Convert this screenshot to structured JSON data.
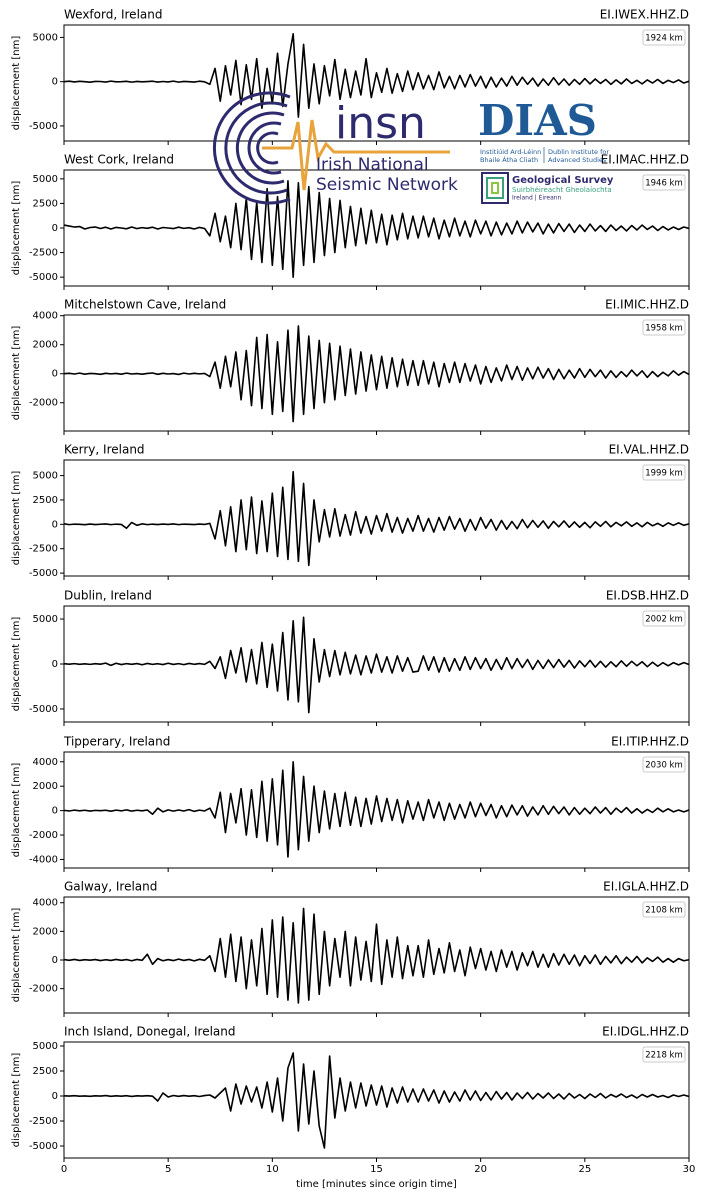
{
  "chart_data": {
    "type": "line",
    "xlabel": "time [minutes since origin time]",
    "ylabel": "displacement [nm]",
    "xlim": [
      0,
      30
    ],
    "xticks": [
      0,
      5,
      10,
      15,
      20,
      25,
      30
    ],
    "color": "#000000",
    "x": [
      0,
      0.25,
      0.5,
      0.75,
      1,
      1.25,
      1.5,
      1.75,
      2,
      2.25,
      2.5,
      2.75,
      3,
      3.25,
      3.5,
      3.75,
      4,
      4.25,
      4.5,
      4.75,
      5,
      5.25,
      5.5,
      5.75,
      6,
      6.25,
      6.5,
      6.75,
      7,
      7.25,
      7.5,
      7.75,
      8,
      8.25,
      8.5,
      8.75,
      9,
      9.25,
      9.5,
      9.75,
      10,
      10.25,
      10.5,
      10.75,
      11,
      11.25,
      11.5,
      11.75,
      12,
      12.25,
      12.5,
      12.75,
      13,
      13.25,
      13.5,
      13.75,
      14,
      14.25,
      14.5,
      14.75,
      15,
      15.25,
      15.5,
      15.75,
      16,
      16.25,
      16.5,
      16.75,
      17,
      17.25,
      17.5,
      17.75,
      18,
      18.25,
      18.5,
      18.75,
      19,
      19.25,
      19.5,
      19.75,
      20,
      20.25,
      20.5,
      20.75,
      21,
      21.25,
      21.5,
      21.75,
      22,
      22.25,
      22.5,
      22.75,
      23,
      23.25,
      23.5,
      23.75,
      24,
      24.25,
      24.5,
      24.75,
      25,
      25.25,
      25.5,
      25.75,
      26,
      26.25,
      26.5,
      26.75,
      27,
      27.25,
      27.5,
      27.75,
      28,
      28.25,
      28.5,
      28.75,
      29,
      29.25,
      29.5,
      29.75,
      30
    ],
    "panels": [
      {
        "title": "Wexford, Ireland",
        "station": "EI.IWEX.HHZ.D",
        "distance": "1924 km",
        "ylim": [
          -6700,
          6400
        ],
        "yticks": [
          -5000,
          0,
          5000
        ],
        "values": [
          0,
          50,
          -30,
          40,
          0,
          -60,
          30,
          20,
          -40,
          60,
          -20,
          0,
          40,
          -50,
          30,
          -20,
          10,
          50,
          -40,
          20,
          -30,
          60,
          -50,
          30,
          0,
          -40,
          50,
          -20,
          -300,
          1500,
          -2200,
          1800,
          -1500,
          2400,
          -2600,
          1900,
          -2000,
          2600,
          -3000,
          1500,
          -2500,
          3200,
          -2800,
          2000,
          5400,
          -4000,
          4200,
          -3000,
          2000,
          -2500,
          1800,
          -1600,
          2500,
          -2000,
          1400,
          -1800,
          1200,
          -1500,
          2600,
          -1800,
          1000,
          -1200,
          1500,
          -1300,
          900,
          -1100,
          1200,
          -900,
          1000,
          -800,
          700,
          -900,
          1100,
          -700,
          600,
          -800,
          700,
          -600,
          800,
          -500,
          600,
          -700,
          500,
          -600,
          400,
          -500,
          600,
          -400,
          500,
          -300,
          400,
          -500,
          300,
          -400,
          450,
          -350,
          300,
          -400,
          250,
          -300,
          350,
          -250,
          300,
          -200,
          250,
          -300,
          200,
          -250,
          300,
          -200,
          150,
          -250,
          200,
          -150,
          250,
          -200,
          150,
          -100,
          200,
          -150,
          50
        ]
      },
      {
        "title": "West Cork, Ireland",
        "station": "EI.IMAC.HHZ.D",
        "distance": "1946 km",
        "ylim": [
          -5900,
          5900
        ],
        "yticks": [
          -5000,
          -2500,
          0,
          2500,
          5000
        ],
        "values": [
          300,
          200,
          100,
          150,
          -100,
          50,
          100,
          -50,
          80,
          -100,
          60,
          0,
          -80,
          100,
          -60,
          40,
          -30,
          80,
          -100,
          50,
          0,
          -60,
          80,
          -40,
          30,
          -100,
          60,
          -50,
          -800,
          1500,
          -1400,
          1200,
          -2000,
          2500,
          -2200,
          3000,
          -3200,
          2600,
          -3500,
          4000,
          -3800,
          3200,
          -4200,
          4800,
          -5000,
          4600,
          -3800,
          4200,
          -3500,
          3600,
          -2800,
          3000,
          -2500,
          2800,
          -2000,
          2200,
          -1800,
          2000,
          -1600,
          1800,
          -1500,
          1400,
          -1700,
          1300,
          -1200,
          1500,
          -1100,
          1200,
          -1000,
          1200,
          -900,
          1000,
          -1100,
          800,
          -900,
          1000,
          -800,
          700,
          -900,
          800,
          -600,
          700,
          -800,
          600,
          -700,
          500,
          -600,
          700,
          -500,
          600,
          -400,
          500,
          -600,
          400,
          -500,
          450,
          -350,
          400,
          -450,
          300,
          -350,
          400,
          -300,
          250,
          -350,
          300,
          -250,
          200,
          -300,
          250,
          -200,
          300,
          -150,
          200,
          -250,
          150,
          -200,
          100,
          -150,
          100,
          -50
        ]
      },
      {
        "title": "Mitchelstown Cave, Ireland",
        "station": "EI.IMIC.HHZ.D",
        "distance": "1958 km",
        "ylim": [
          -3950,
          4050
        ],
        "yticks": [
          -2000,
          0,
          2000,
          4000
        ],
        "values": [
          0,
          30,
          -20,
          40,
          -30,
          20,
          0,
          -40,
          30,
          -10,
          20,
          -30,
          40,
          -20,
          10,
          -30,
          20,
          50,
          -40,
          30,
          -20,
          10,
          -50,
          40,
          -20,
          30,
          -10,
          20,
          -200,
          800,
          -1000,
          1200,
          -900,
          1500,
          -1800,
          1600,
          -2200,
          2500,
          -2400,
          2700,
          -2800,
          2200,
          -2600,
          3000,
          -3300,
          3300,
          -2800,
          2600,
          -2400,
          2300,
          -2000,
          2100,
          -1800,
          1900,
          -1500,
          1700,
          -1400,
          1500,
          -1200,
          1300,
          -1100,
          1200,
          -1000,
          1100,
          -900,
          1000,
          -800,
          900,
          -800,
          900,
          -700,
          800,
          -900,
          700,
          -600,
          800,
          -600,
          700,
          -500,
          600,
          -700,
          500,
          -600,
          400,
          -500,
          600,
          -400,
          500,
          -450,
          400,
          -350,
          450,
          -300,
          350,
          -400,
          300,
          -350,
          250,
          -300,
          350,
          -250,
          300,
          -200,
          250,
          -300,
          200,
          -250,
          150,
          -200,
          250,
          -150,
          200,
          -250,
          150,
          -200,
          100,
          -150,
          200,
          -100,
          150,
          -50
        ]
      },
      {
        "title": "Kerry, Ireland",
        "station": "EI.VAL.HHZ.D",
        "distance": "1999 km",
        "ylim": [
          -5300,
          6600
        ],
        "yticks": [
          -5000,
          -2500,
          0,
          2500,
          5000
        ],
        "values": [
          50,
          -30,
          20,
          0,
          -40,
          30,
          -20,
          10,
          40,
          -30,
          20,
          -10,
          -400,
          200,
          -100,
          50,
          -30,
          20,
          -20,
          30,
          -10,
          40,
          -30,
          20,
          0,
          -20,
          30,
          -10,
          100,
          -1500,
          1400,
          -2200,
          1800,
          -2800,
          2500,
          -2600,
          2800,
          -3000,
          2400,
          -2800,
          3200,
          -3300,
          3800,
          -3600,
          5400,
          -3800,
          4200,
          -4200,
          2500,
          -1800,
          1500,
          -1300,
          1600,
          -1200,
          1000,
          -1100,
          1300,
          -900,
          800,
          -1000,
          900,
          -700,
          1100,
          -800,
          700,
          -900,
          600,
          -700,
          900,
          -700,
          600,
          -800,
          700,
          -600,
          800,
          -500,
          600,
          -700,
          500,
          -600,
          700,
          -400,
          500,
          -600,
          400,
          -500,
          300,
          -450,
          500,
          -350,
          400,
          -300,
          350,
          -400,
          300,
          -250,
          350,
          -300,
          250,
          -300,
          200,
          -350,
          250,
          -200,
          300,
          -250,
          200,
          -150,
          250,
          -200,
          150,
          -250,
          200,
          -150,
          100,
          -200,
          150,
          -100,
          150,
          -100,
          50
        ]
      },
      {
        "title": "Dublin, Ireland",
        "station": "EI.DSB.HHZ.D",
        "distance": "2002 km",
        "ylim": [
          -6450,
          6450
        ],
        "yticks": [
          -5000,
          0,
          5000
        ],
        "values": [
          30,
          -20,
          40,
          -30,
          20,
          -40,
          30,
          -20,
          100,
          -150,
          80,
          -60,
          40,
          -30,
          50,
          -80,
          60,
          -40,
          30,
          -60,
          80,
          -50,
          40,
          -70,
          60,
          -30,
          50,
          -40,
          300,
          -500,
          800,
          -1600,
          1500,
          -1000,
          1800,
          -2000,
          1600,
          -2200,
          2400,
          -2600,
          2200,
          -3000,
          3500,
          -4000,
          4800,
          -4200,
          5200,
          -5400,
          2800,
          -2000,
          1600,
          -1400,
          1500,
          -1200,
          1300,
          -1100,
          1000,
          -1200,
          900,
          -1000,
          1100,
          -900,
          800,
          -1000,
          900,
          -800,
          700,
          -900,
          -800,
          900,
          -700,
          800,
          -900,
          700,
          -800,
          600,
          -700,
          800,
          -600,
          700,
          -500,
          600,
          -700,
          500,
          -600,
          700,
          -500,
          600,
          -400,
          500,
          -600,
          400,
          -500,
          450,
          -400,
          500,
          -350,
          400,
          -450,
          350,
          -300,
          400,
          -350,
          300,
          -350,
          250,
          -300,
          350,
          -250,
          300,
          -200,
          250,
          -300,
          200,
          -250,
          150,
          -200,
          150,
          -100,
          150,
          -50
        ]
      },
      {
        "title": "Tipperary, Ireland",
        "station": "EI.ITIP.HHZ.D",
        "distance": "2030 km",
        "ylim": [
          -4700,
          4800
        ],
        "yticks": [
          -4000,
          -2000,
          0,
          2000,
          4000
        ],
        "values": [
          20,
          -30,
          40,
          -20,
          30,
          -40,
          20,
          -10,
          30,
          -50,
          40,
          -20,
          60,
          -40,
          30,
          -20,
          50,
          -300,
          200,
          -100,
          60,
          -40,
          50,
          -30,
          80,
          -60,
          40,
          -30,
          200,
          -600,
          1500,
          -1800,
          1400,
          -1000,
          1800,
          -2000,
          1700,
          -2200,
          2400,
          -2500,
          2600,
          -2800,
          3300,
          -3800,
          4000,
          -3200,
          2800,
          -2500,
          2000,
          -1800,
          1600,
          -1500,
          1400,
          -1300,
          1500,
          -1200,
          1100,
          -1300,
          1000,
          -1100,
          1200,
          -900,
          1000,
          -800,
          900,
          -1000,
          800,
          -700,
          700,
          -800,
          900,
          -600,
          700,
          -800,
          600,
          -700,
          500,
          -600,
          700,
          -500,
          600,
          -400,
          500,
          -600,
          400,
          -500,
          450,
          -350,
          400,
          -450,
          300,
          -350,
          400,
          -300,
          350,
          -250,
          300,
          -350,
          250,
          -300,
          200,
          -250,
          300,
          -200,
          250,
          -300,
          200,
          -150,
          250,
          -200,
          150,
          -200,
          100,
          -150,
          200,
          -100,
          150,
          -100,
          50,
          -100,
          50
        ]
      },
      {
        "title": "Galway, Ireland",
        "station": "EI.IGLA.HHZ.D",
        "distance": "2108 km",
        "ylim": [
          -3700,
          4400
        ],
        "yticks": [
          -2000,
          0,
          2000,
          4000
        ],
        "values": [
          30,
          -20,
          40,
          -30,
          20,
          -10,
          30,
          -40,
          20,
          -30,
          40,
          -20,
          30,
          -50,
          40,
          -20,
          400,
          -300,
          100,
          -50,
          30,
          -40,
          60,
          -30,
          40,
          -60,
          50,
          -20,
          300,
          -800,
          1500,
          -1200,
          1800,
          -1500,
          1600,
          -2000,
          1400,
          -1800,
          2200,
          -2400,
          2800,
          -2600,
          3000,
          -2800,
          2600,
          -3000,
          3600,
          -2800,
          3200,
          -2400,
          2000,
          -1800,
          1500,
          -1200,
          2000,
          -1800,
          1600,
          -1400,
          1300,
          -1500,
          2500,
          -1700,
          1400,
          -1200,
          1600,
          -1300,
          1000,
          -1100,
          1000,
          -1200,
          1400,
          -1000,
          800,
          -900,
          1200,
          -800,
          700,
          -1100,
          900,
          -600,
          800,
          -700,
          600,
          -800,
          700,
          -500,
          600,
          -700,
          500,
          -400,
          600,
          -500,
          400,
          -500,
          450,
          -350,
          400,
          -300,
          350,
          -400,
          300,
          -250,
          350,
          -300,
          250,
          -200,
          300,
          -250,
          200,
          -150,
          250,
          -200,
          150,
          -100,
          200,
          -150,
          100,
          -150,
          100,
          -50,
          20
        ]
      },
      {
        "title": "Inch Island, Donegal, Ireland",
        "station": "EI.IDGL.HHZ.D",
        "distance": "2218 km",
        "ylim": [
          -6200,
          5400
        ],
        "yticks": [
          -5000,
          -2500,
          0,
          2500,
          5000
        ],
        "values": [
          20,
          -10,
          30,
          -20,
          10,
          -30,
          20,
          -10,
          40,
          -30,
          20,
          -20,
          30,
          -40,
          20,
          -10,
          30,
          -20,
          -500,
          300,
          -100,
          50,
          -30,
          40,
          -20,
          30,
          -50,
          40,
          100,
          -200,
          300,
          800,
          -1500,
          1200,
          -800,
          1000,
          -600,
          900,
          -1200,
          1400,
          -1600,
          1800,
          -2500,
          2800,
          4300,
          -3500,
          3200,
          -2800,
          2500,
          -3000,
          -5200,
          4000,
          -2200,
          1800,
          -1500,
          1400,
          -1200,
          1300,
          -1000,
          1100,
          -900,
          1000,
          -1100,
          800,
          -700,
          900,
          -600,
          700,
          -600,
          700,
          -500,
          600,
          -700,
          500,
          -600,
          400,
          -500,
          600,
          -400,
          500,
          -450,
          350,
          -400,
          450,
          -300,
          350,
          -400,
          300,
          -250,
          350,
          -300,
          250,
          -200,
          300,
          -250,
          200,
          -300,
          250,
          -200,
          150,
          -250,
          200,
          -150,
          250,
          -200,
          150,
          -100,
          200,
          -150,
          100,
          -200,
          150,
          -100,
          150,
          -100,
          50,
          -150,
          100,
          -50,
          100,
          -50
        ]
      }
    ]
  },
  "logos": {
    "insn": "insn",
    "insn_line1": "Irish National",
    "insn_line2": "Seismic Network",
    "dias": "DIAS",
    "dias_ga1": "Institiúid Ard-Léinn",
    "dias_ga2": "Bhaile Átha Cliath",
    "dias_en1": "Dublin Institute for",
    "dias_en2": "Advanced Studies",
    "gsi": "Geological Survey",
    "gsi_ga": "Suirbhéireacht Gheolaíochta",
    "gsi_sub": "Ireland | Éireann"
  }
}
